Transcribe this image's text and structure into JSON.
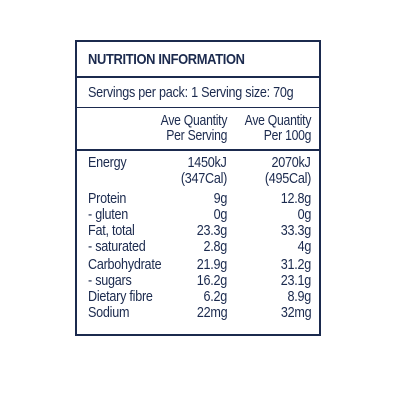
{
  "panel": {
    "title": "NUTRITION INFORMATION",
    "serving_info": "Servings per pack: 1 Serving size: 70g",
    "columns": [
      {
        "line1": "Ave Quantity",
        "line2": "Per Serving"
      },
      {
        "line1": "Ave Quantity",
        "line2": "Per 100g"
      }
    ],
    "rows": [
      {
        "name": "Energy",
        "per_serving": "1450kJ",
        "per_100g": "2070kJ"
      },
      {
        "name": "",
        "per_serving": "(347Cal)",
        "per_100g": "(495Cal)"
      },
      {
        "name": "Protein",
        "per_serving": "9g",
        "per_100g": "12.8g"
      },
      {
        "name": " - gluten",
        "per_serving": "0g",
        "per_100g": "0g"
      },
      {
        "name": "Fat, total",
        "per_serving": "23.3g",
        "per_100g": "33.3g"
      },
      {
        "name": " - saturated",
        "per_serving": "2.8g",
        "per_100g": "4g"
      },
      {
        "name": "Carbohydrate",
        "per_serving": "21.9g",
        "per_100g": "31.2g"
      },
      {
        "name": " - sugars",
        "per_serving": "16.2g",
        "per_100g": "23.1g"
      },
      {
        "name": "Dietary fibre",
        "per_serving": "6.2g",
        "per_100g": "8.9g"
      },
      {
        "name": "Sodium",
        "per_serving": "22mg",
        "per_100g": "32mg"
      }
    ],
    "border_color": "#1b2a4e",
    "text_color": "#1b2a4e"
  }
}
